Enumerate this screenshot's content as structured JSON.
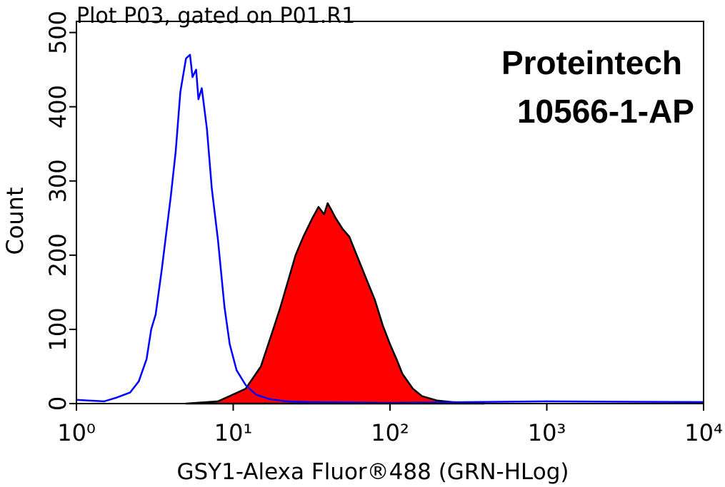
{
  "chart_data": {
    "type": "histogram-overlay",
    "title": "Plot P03, gated on P01.R1",
    "annotations": [
      "Proteintech",
      "10566-1-AP"
    ],
    "x_label": "GSY1-Alexa Fluor®488 (GRN-HLog)",
    "y_label": "Count",
    "x_scale": "log",
    "xlim": [
      1,
      10000
    ],
    "ylim": [
      0,
      515
    ],
    "xticks": [
      {
        "value": 1,
        "label": "10⁰"
      },
      {
        "value": 10,
        "label": "10¹"
      },
      {
        "value": 100,
        "label": "10²"
      },
      {
        "value": 1000,
        "label": "10³"
      },
      {
        "value": 10000,
        "label": "10⁴"
      }
    ],
    "yticks": [
      0,
      100,
      200,
      300,
      400,
      500
    ],
    "series": [
      {
        "color": "#0000ff",
        "fill": "none",
        "x": [
          1,
          1.5,
          1.8,
          2.2,
          2.5,
          2.8,
          3.0,
          3.2,
          3.5,
          4.0,
          4.3,
          4.6,
          5.0,
          5.3,
          5.5,
          5.8,
          6.0,
          6.3,
          6.8,
          7.3,
          8.0,
          8.8,
          9.5,
          10.5,
          12,
          14,
          17,
          22,
          30,
          100,
          1000,
          10000
        ],
        "values": [
          5,
          3,
          8,
          15,
          30,
          60,
          100,
          120,
          180,
          280,
          340,
          420,
          465,
          470,
          440,
          450,
          410,
          425,
          370,
          290,
          220,
          130,
          80,
          45,
          25,
          12,
          6,
          3,
          2,
          1,
          3,
          2
        ]
      },
      {
        "color": "#000000",
        "fill": "#ff0000",
        "x": [
          5,
          8,
          12,
          15,
          18,
          20,
          22,
          25,
          28,
          32,
          35,
          38,
          40,
          42,
          45,
          50,
          55,
          60,
          70,
          80,
          90,
          100,
          110,
          120,
          140,
          160,
          200,
          250,
          400
        ],
        "values": [
          0,
          3,
          20,
          50,
          100,
          130,
          160,
          200,
          225,
          250,
          265,
          255,
          270,
          262,
          250,
          235,
          225,
          205,
          170,
          140,
          105,
          80,
          60,
          40,
          20,
          10,
          4,
          2,
          0
        ]
      }
    ]
  }
}
